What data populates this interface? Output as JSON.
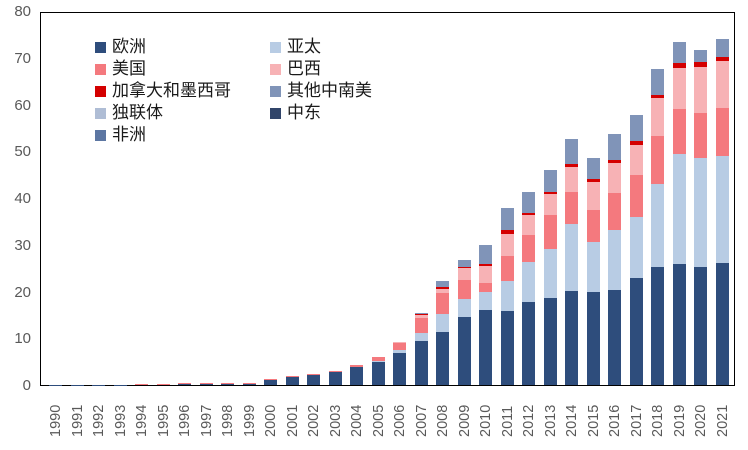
{
  "page": {
    "background": "#ffffff"
  },
  "axis": {
    "tick_text_color": "#595959",
    "plot_border_color": "#000000"
  },
  "chart_data": {
    "type": "bar",
    "stacked": true,
    "title": "",
    "xlabel": "",
    "ylabel": "",
    "ylim": [
      0,
      80
    ],
    "yticks": [
      "0",
      "10",
      "20",
      "30",
      "40",
      "50",
      "60",
      "70",
      "80"
    ],
    "grid": false,
    "legend_position": "top-left-inside",
    "x": [
      "1990",
      "1991",
      "1992",
      "1993",
      "1994",
      "1995",
      "1996",
      "1997",
      "1998",
      "1999",
      "2000",
      "2001",
      "2002",
      "2003",
      "2004",
      "2005",
      "2006",
      "2007",
      "2008",
      "2009",
      "2010",
      "2011",
      "2012",
      "2013",
      "2014",
      "2015",
      "2016",
      "2017",
      "2018",
      "2019",
      "2020",
      "2021"
    ],
    "series": [
      {
        "name": "欧洲",
        "color": "#2E4D7C",
        "values": [
          0.05,
          0.06,
          0.08,
          0.1,
          0.15,
          0.2,
          0.3,
          0.4,
          0.3,
          0.4,
          1.1,
          1.8,
          2.1,
          2.7,
          3.9,
          5.0,
          6.8,
          9.4,
          11.4,
          14.5,
          16.0,
          15.8,
          17.8,
          18.7,
          20.1,
          20.0,
          20.3,
          22.8,
          25.3,
          25.9,
          25.3,
          26.0
        ]
      },
      {
        "name": "亚太",
        "color": "#B8CCE4",
        "values": [
          0,
          0,
          0,
          0,
          0,
          0,
          0,
          0,
          0,
          0,
          0,
          0,
          0,
          0,
          0,
          0.2,
          0.7,
          1.7,
          3.7,
          4.0,
          4.0,
          6.5,
          8.6,
          10.4,
          14.4,
          10.5,
          12.8,
          13.1,
          17.6,
          23.5,
          23.2,
          22.9
        ]
      },
      {
        "name": "美国",
        "color": "#F4797E",
        "values": [
          0,
          0,
          0,
          0,
          0.05,
          0.05,
          0.05,
          0.05,
          0.05,
          0.05,
          0.1,
          0.1,
          0.3,
          0.3,
          0.3,
          0.9,
          1.6,
          3.2,
          4.6,
          4.0,
          1.8,
          5.4,
          5.7,
          7.2,
          6.8,
          6.9,
          8.0,
          9.0,
          10.3,
          9.7,
          9.7,
          10.4
        ]
      },
      {
        "name": "巴西",
        "color": "#F7B2B5",
        "values": [
          0,
          0,
          0,
          0,
          0,
          0,
          0,
          0,
          0,
          0,
          0,
          0,
          0,
          0,
          0,
          0,
          0.1,
          0.7,
          0.9,
          2.5,
          3.6,
          4.7,
          4.2,
          4.5,
          5.4,
          6.1,
          6.3,
          6.5,
          8.2,
          8.8,
          9.9,
          10.1
        ]
      },
      {
        "name": "加拿大和墨西哥",
        "color": "#D40000",
        "values": [
          0,
          0,
          0,
          0,
          0,
          0,
          0,
          0,
          0,
          0,
          0,
          0,
          0,
          0,
          0,
          0,
          0,
          0.3,
          0.3,
          0.2,
          0.4,
          0.7,
          0.5,
          0.5,
          0.6,
          0.5,
          0.7,
          0.7,
          0.7,
          0.9,
          0.9,
          0.8
        ]
      },
      {
        "name": "其他中南美",
        "color": "#8094B8",
        "values": [
          0,
          0,
          0,
          0,
          0,
          0,
          0,
          0,
          0,
          0,
          0,
          0,
          0,
          0,
          0,
          0,
          0,
          0.2,
          1.4,
          1.5,
          4.2,
          4.7,
          4.5,
          4.7,
          5.3,
          4.5,
          5.5,
          5.7,
          5.4,
          4.5,
          2.7,
          3.8
        ]
      },
      {
        "name": "独联体",
        "color": "#AFBDD5",
        "values": [
          0,
          0,
          0,
          0,
          0,
          0,
          0,
          0,
          0,
          0,
          0,
          0,
          0,
          0,
          0,
          0,
          0,
          0,
          0,
          0,
          0,
          0,
          0,
          0,
          0,
          0,
          0,
          0,
          0,
          0,
          0,
          0
        ]
      },
      {
        "name": "中东",
        "color": "#31456A",
        "values": [
          0,
          0,
          0,
          0,
          0,
          0,
          0,
          0,
          0,
          0,
          0,
          0,
          0,
          0,
          0,
          0,
          0,
          0,
          0,
          0,
          0,
          0,
          0,
          0,
          0,
          0,
          0,
          0,
          0,
          0,
          0,
          0
        ]
      },
      {
        "name": "非洲",
        "color": "#5C76A2",
        "values": [
          0,
          0,
          0,
          0,
          0,
          0,
          0,
          0,
          0,
          0,
          0,
          0,
          0,
          0,
          0,
          0,
          0,
          0,
          0,
          0,
          0,
          0,
          0,
          0,
          0,
          0,
          0,
          0,
          0,
          0,
          0,
          0
        ]
      }
    ],
    "legend_columns": [
      [
        "欧洲",
        "美国",
        "加拿大和墨西哥",
        "独联体",
        "非洲"
      ],
      [
        "亚太",
        "巴西",
        "其他中南美",
        "中东"
      ]
    ]
  }
}
